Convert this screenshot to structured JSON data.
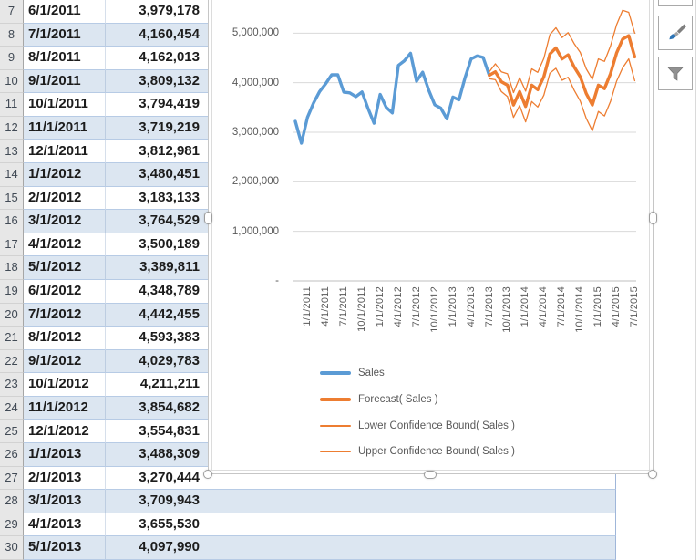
{
  "table": {
    "rows": [
      {
        "n": "7",
        "date": "6/1/2011",
        "value": "3,979,178"
      },
      {
        "n": "8",
        "date": "7/1/2011",
        "value": "4,160,454"
      },
      {
        "n": "9",
        "date": "8/1/2011",
        "value": "4,162,013"
      },
      {
        "n": "10",
        "date": "9/1/2011",
        "value": "3,809,132"
      },
      {
        "n": "11",
        "date": "10/1/2011",
        "value": "3,794,419"
      },
      {
        "n": "12",
        "date": "11/1/2011",
        "value": "3,719,219"
      },
      {
        "n": "13",
        "date": "12/1/2011",
        "value": "3,812,981"
      },
      {
        "n": "14",
        "date": "1/1/2012",
        "value": "3,480,451"
      },
      {
        "n": "15",
        "date": "2/1/2012",
        "value": "3,183,133"
      },
      {
        "n": "16",
        "date": "3/1/2012",
        "value": "3,764,529"
      },
      {
        "n": "17",
        "date": "4/1/2012",
        "value": "3,500,189"
      },
      {
        "n": "18",
        "date": "5/1/2012",
        "value": "3,389,811"
      },
      {
        "n": "19",
        "date": "6/1/2012",
        "value": "4,348,789"
      },
      {
        "n": "20",
        "date": "7/1/2012",
        "value": "4,442,455"
      },
      {
        "n": "21",
        "date": "8/1/2012",
        "value": "4,593,383"
      },
      {
        "n": "22",
        "date": "9/1/2012",
        "value": "4,029,783"
      },
      {
        "n": "23",
        "date": "10/1/2012",
        "value": "4,211,211"
      },
      {
        "n": "24",
        "date": "11/1/2012",
        "value": "3,854,682"
      },
      {
        "n": "25",
        "date": "12/1/2012",
        "value": "3,554,831"
      },
      {
        "n": "26",
        "date": "1/1/2013",
        "value": "3,488,309"
      },
      {
        "n": "27",
        "date": "2/1/2013",
        "value": "3,270,444"
      },
      {
        "n": "28",
        "date": "3/1/2013",
        "value": "3,709,943"
      },
      {
        "n": "29",
        "date": "4/1/2013",
        "value": "3,655,530"
      },
      {
        "n": "30",
        "date": "5/1/2013",
        "value": "4,097,990"
      }
    ]
  },
  "chart_data": {
    "type": "line",
    "title": "",
    "x_start_date": "1/1/2011",
    "x_tick_interval_months": 3,
    "x_tick_labels": [
      "1/1/2011",
      "4/1/2011",
      "7/1/2011",
      "10/1/2011",
      "1/1/2012",
      "4/1/2012",
      "7/1/2012",
      "10/1/2012",
      "1/1/2013",
      "4/1/2013",
      "7/1/2013",
      "10/1/2013",
      "1/1/2014",
      "4/1/2014",
      "7/1/2014",
      "10/1/2014",
      "1/1/2015",
      "4/1/2015",
      "7/1/2015"
    ],
    "y_tick_labels": [
      "5,000,000",
      "4,000,000",
      "3,000,000",
      "2,000,000",
      "1,000,000",
      "-"
    ],
    "y_tick_values": [
      5000000,
      4000000,
      3000000,
      2000000,
      1000000,
      0
    ],
    "ylim": [
      0,
      5650000
    ],
    "grid": true,
    "legend_position": "bottom-left",
    "series": [
      {
        "name": "Sales",
        "color": "#5B9BD5",
        "width": 3.4,
        "start_month": 0,
        "values": [
          3220000,
          2780000,
          3300000,
          3590000,
          3820000,
          3979178,
          4160454,
          4162013,
          3809132,
          3794419,
          3719219,
          3812981,
          3480451,
          3183133,
          3764529,
          3500189,
          3389811,
          4348789,
          4442455,
          4593383,
          4029783,
          4211211,
          3854682,
          3554831,
          3488309,
          3270444,
          3709943,
          3655530,
          4097990,
          4480000,
          4540000,
          4510000,
          4150000
        ]
      },
      {
        "name": "Lower Confidence Bound( Sales )",
        "color": "#ED7D31",
        "width": 1.3,
        "start_month": 32,
        "values": [
          4080000,
          4060000,
          3820000,
          3720000,
          3300000,
          3540000,
          3210000,
          3620000,
          3510000,
          3750000,
          4190000,
          4290000,
          4050000,
          4110000,
          3850000,
          3630000,
          3280000,
          3030000,
          3420000,
          3330000,
          3620000,
          4030000,
          4300000,
          4480000,
          4040000
        ]
      },
      {
        "name": "Upper Confidence Bound( Sales )",
        "color": "#ED7D31",
        "width": 1.3,
        "start_month": 32,
        "values": [
          4220000,
          4380000,
          4220000,
          4180000,
          3800000,
          4100000,
          3830000,
          4280000,
          4210000,
          4490000,
          4970000,
          5110000,
          4910000,
          5010000,
          4790000,
          4610000,
          4280000,
          4070000,
          4480000,
          4430000,
          4740000,
          5170000,
          5460000,
          5420000,
          5000000
        ]
      },
      {
        "name": "Forecast( Sales )",
        "color": "#ED7D31",
        "width": 3.4,
        "start_month": 32,
        "values": [
          4150000,
          4220000,
          4020000,
          3950000,
          3550000,
          3820000,
          3520000,
          3950000,
          3860000,
          4120000,
          4580000,
          4700000,
          4480000,
          4560000,
          4320000,
          4120000,
          3780000,
          3550000,
          3950000,
          3880000,
          4180000,
          4600000,
          4880000,
          4950000,
          4520000
        ]
      }
    ],
    "legend": [
      {
        "label": "Sales",
        "color": "#5B9BD5",
        "weight": 4
      },
      {
        "label": "Forecast( Sales )",
        "color": "#ED7D31",
        "weight": 4
      },
      {
        "label": "Lower Confidence Bound( Sales )",
        "color": "#ED7D31",
        "weight": 1.5
      },
      {
        "label": "Upper Confidence Bound( Sales )",
        "color": "#ED7D31",
        "weight": 1.5
      }
    ]
  },
  "side_buttons": {
    "chart_elements": "chart-elements-button",
    "chart_styles": "chart-styles-button",
    "chart_filters": "chart-filters-button"
  },
  "colors": {
    "band": "#DCE6F1",
    "sales_line": "#5B9BD5",
    "forecast_line": "#ED7D31",
    "gridline": "#D9D9D9",
    "axis_line": "#BFBFBF",
    "axis_text": "#595959",
    "row_header_bg": "#E7E7E7"
  }
}
